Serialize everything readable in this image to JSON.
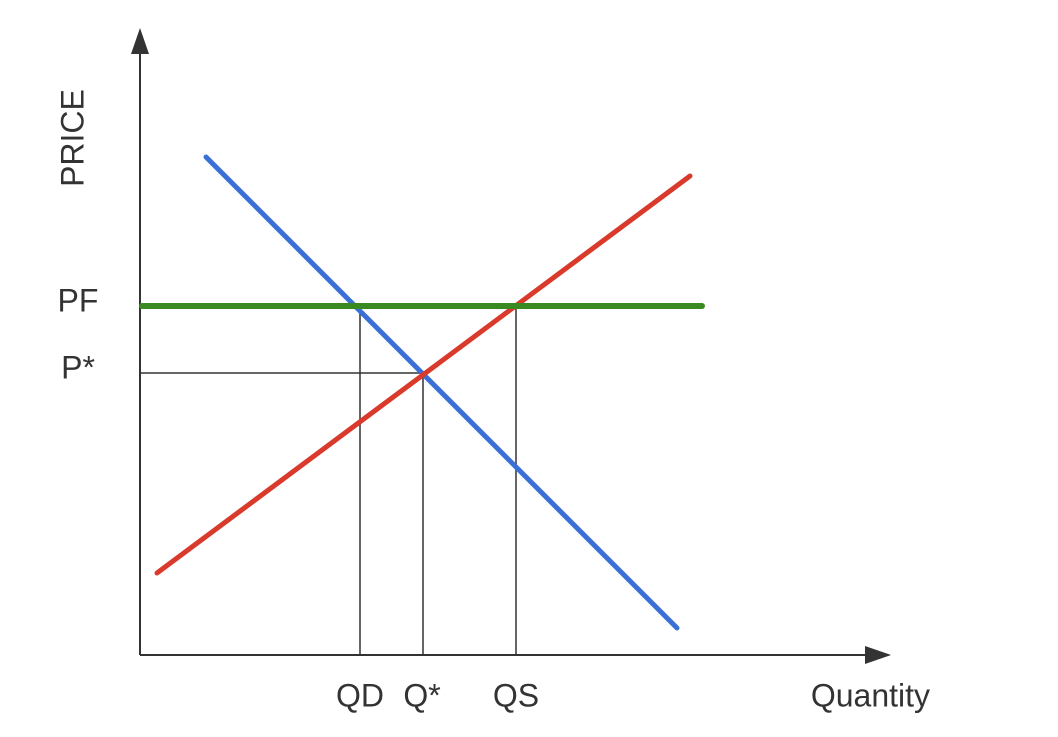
{
  "axes": {
    "y_label": "PRICE",
    "x_label": "Quantity"
  },
  "price_labels": [
    "PF",
    "P*"
  ],
  "quantity_labels": [
    "QD",
    "Q*",
    "QS"
  ]
}
